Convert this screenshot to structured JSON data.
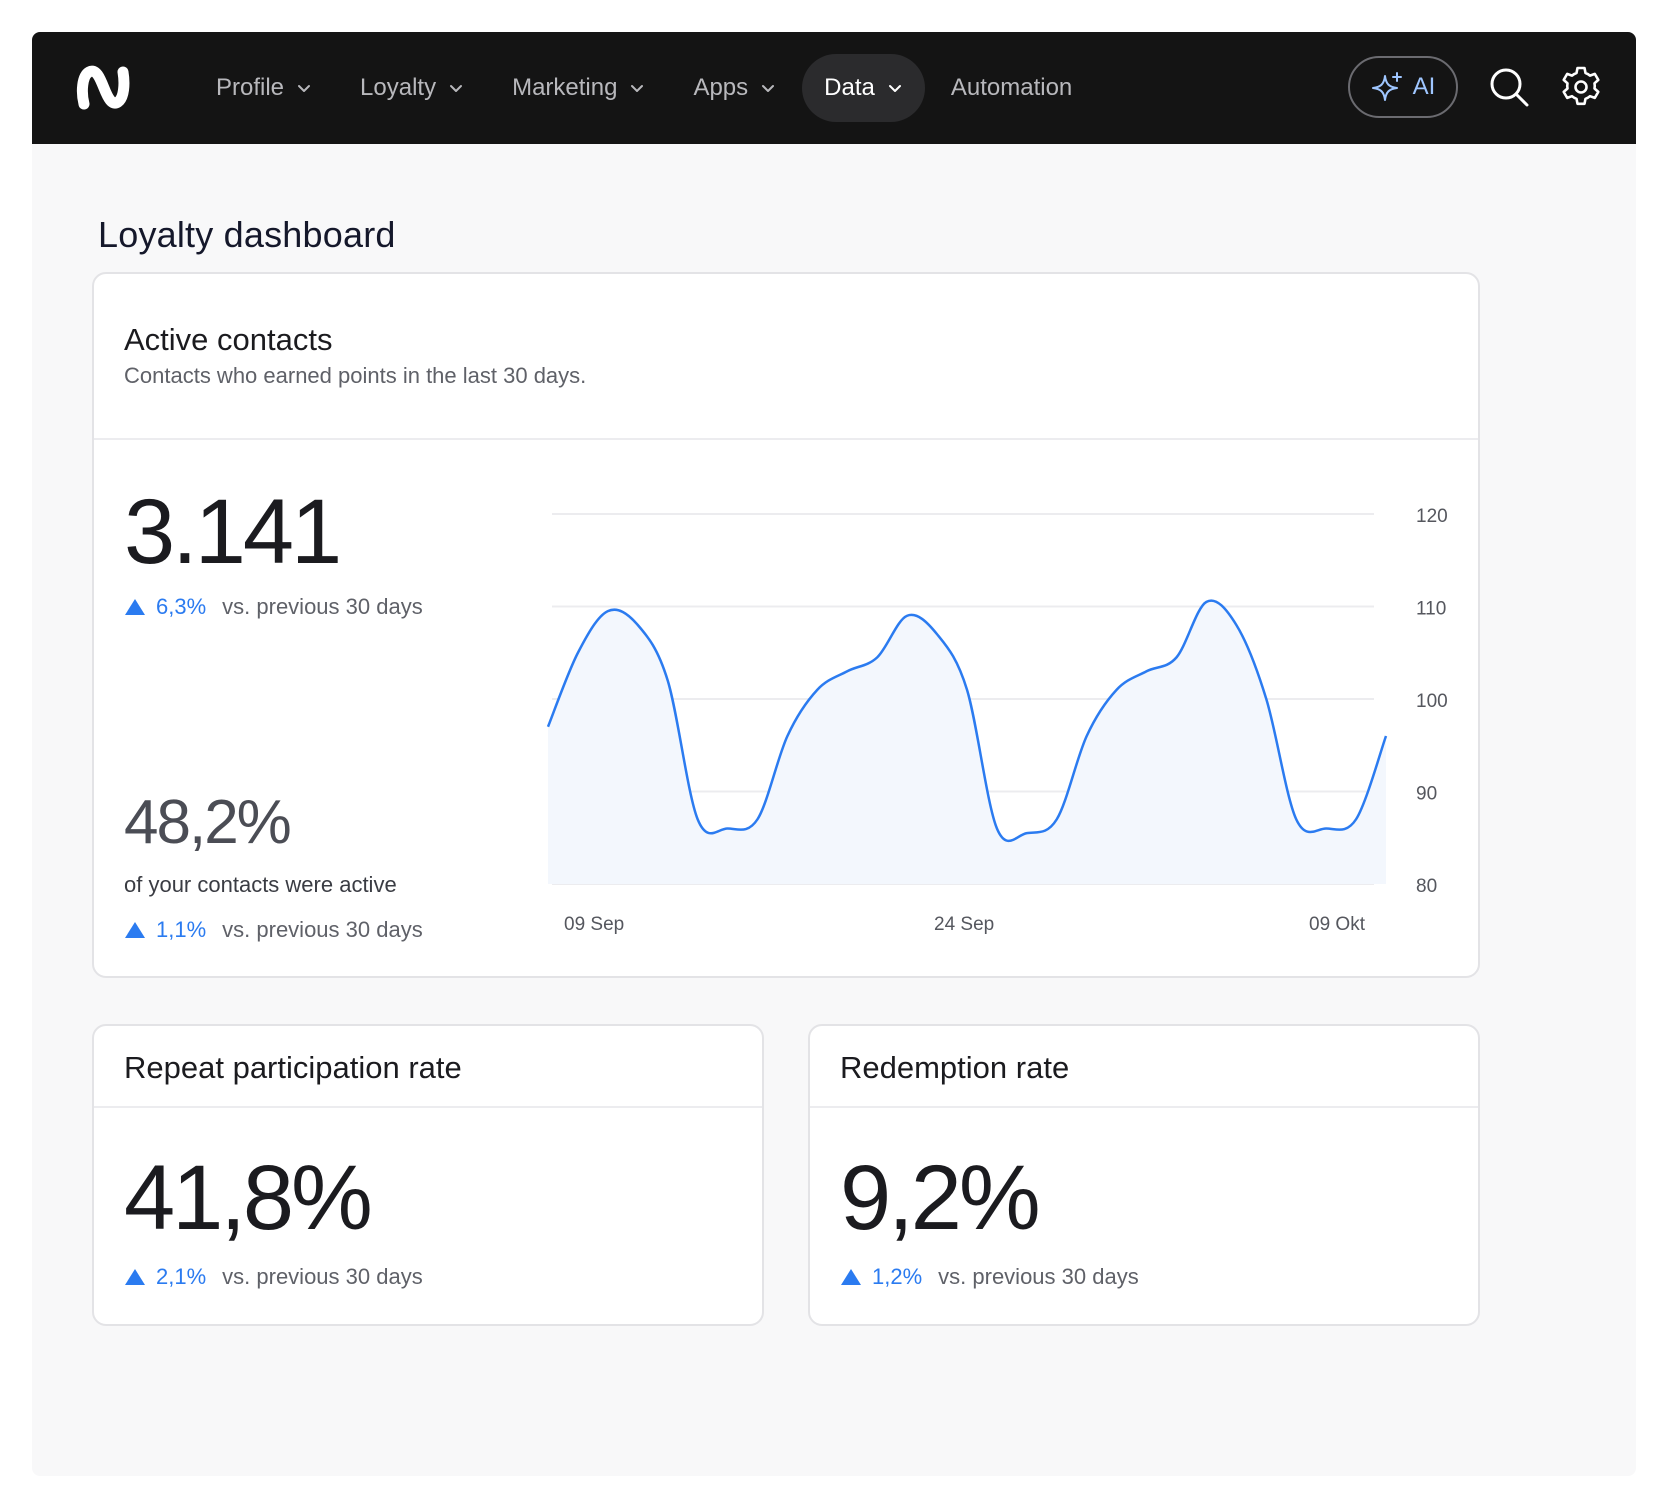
{
  "nav": {
    "items": [
      {
        "label": "Profile",
        "dropdown": true,
        "active": false
      },
      {
        "label": "Loyalty",
        "dropdown": true,
        "active": false
      },
      {
        "label": "Marketing",
        "dropdown": true,
        "active": false
      },
      {
        "label": "Apps",
        "dropdown": true,
        "active": false
      },
      {
        "label": "Data",
        "dropdown": true,
        "active": true
      },
      {
        "label": "Automation",
        "dropdown": false,
        "active": false
      }
    ],
    "ai_label": "AI"
  },
  "page": {
    "title": "Loyalty dashboard"
  },
  "active_contacts": {
    "title": "Active contacts",
    "subtitle": "Contacts who earned points in the last 30 days.",
    "value": "3.141",
    "delta": "6,3%",
    "delta_compare": "vs. previous 30 days",
    "share_value": "48,2%",
    "share_text": "of your contacts were active",
    "share_delta": "1,1%",
    "share_delta_compare": "vs. previous 30 days"
  },
  "repeat_participation": {
    "title": "Repeat participation rate",
    "value": "41,8%",
    "delta": "2,1%",
    "delta_compare": "vs. previous 30 days"
  },
  "redemption": {
    "title": "Redemption rate",
    "value": "9,2%",
    "delta": "1,2%",
    "delta_compare": "vs. previous 30 days"
  },
  "colors": {
    "accent": "#2b7bf0",
    "topbar": "#141414",
    "ai": "#9fc6ff",
    "area_fill": "#f3f7fd"
  },
  "chart_data": {
    "type": "area",
    "title": "",
    "xlabel": "",
    "ylabel": "",
    "ylim": [
      80,
      120
    ],
    "yticks": [
      "120",
      "110",
      "100",
      "90",
      "80"
    ],
    "xtick_labels": [
      "09 Sep",
      "24 Sep",
      "09 Okt"
    ],
    "grid": true,
    "y_axis_side": "right",
    "series": [
      {
        "values": [
          97,
          105,
          109.5,
          108,
          102,
          87,
          86,
          87,
          96,
          101,
          103,
          104.5,
          109,
          107,
          101,
          86,
          85.5,
          87,
          96,
          101,
          103,
          104.5,
          110.5,
          108,
          100,
          87,
          86,
          87,
          96
        ]
      }
    ]
  }
}
